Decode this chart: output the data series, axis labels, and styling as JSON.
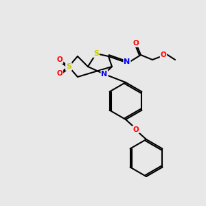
{
  "bg_color": "#e8e8e8",
  "bond_color": "#000000",
  "bond_width": 1.5,
  "atom_colors": {
    "S": "#cccc00",
    "N": "#0000ff",
    "O": "#ff0000",
    "C": "#000000"
  },
  "figsize": [
    3.0,
    3.0
  ],
  "dpi": 100
}
